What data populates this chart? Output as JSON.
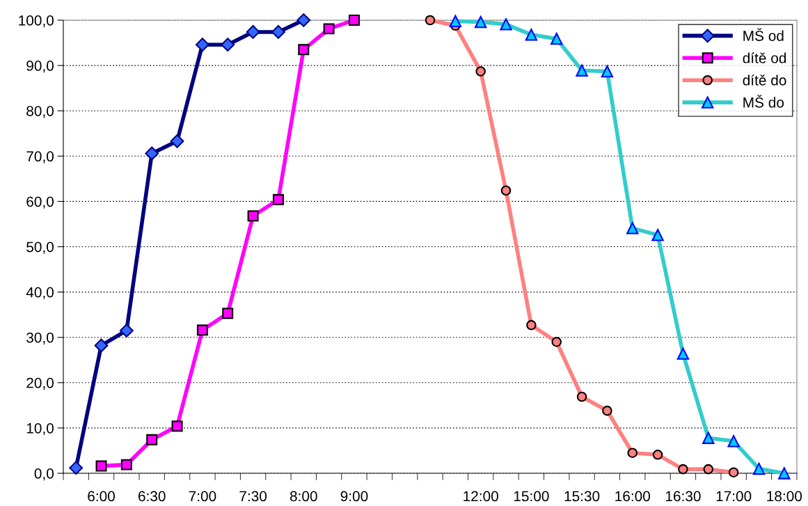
{
  "chart_data": {
    "type": "line",
    "categories": [
      null,
      "6:00",
      null,
      "6:30",
      null,
      "7:00",
      null,
      "7:30",
      null,
      "8:00",
      null,
      "9:00",
      null,
      null,
      null,
      null,
      "12:00",
      null,
      "15:00",
      null,
      "15:30",
      null,
      "16:00",
      null,
      "16:30",
      null,
      "17:00",
      null,
      "18:00"
    ],
    "series": [
      {
        "name": "MŠ od",
        "color": "#000080",
        "marker": "diamond",
        "values": [
          1.2,
          28.2,
          31.5,
          70.6,
          73.3,
          94.6,
          94.6,
          97.4,
          97.4,
          100,
          null,
          null,
          null,
          null,
          null,
          null,
          null,
          null,
          null,
          null,
          null,
          null,
          null,
          null,
          null,
          null,
          null,
          null,
          null
        ]
      },
      {
        "name": "dítě od",
        "color": "#ff00ff",
        "marker": "square",
        "values": [
          null,
          1.6,
          1.9,
          7.4,
          10.4,
          31.6,
          35.3,
          56.8,
          60.4,
          93.5,
          98.1,
          100,
          null,
          null,
          null,
          null,
          null,
          null,
          null,
          null,
          null,
          null,
          null,
          null,
          null,
          null,
          null,
          null,
          null
        ]
      },
      {
        "name": "dítě do",
        "color": "#ff8080",
        "marker": "circle",
        "values": [
          null,
          null,
          null,
          null,
          null,
          null,
          null,
          null,
          null,
          null,
          null,
          null,
          null,
          null,
          100,
          98.8,
          88.7,
          62.4,
          32.7,
          29.0,
          16.9,
          13.8,
          4.5,
          4.1,
          0.9,
          0.9,
          0.2,
          null,
          null
        ]
      },
      {
        "name": "MŠ do",
        "color": "#33cccc",
        "marker": "triangle",
        "values": [
          null,
          null,
          null,
          null,
          null,
          null,
          null,
          null,
          null,
          null,
          null,
          null,
          null,
          null,
          null,
          99.8,
          99.6,
          99.1,
          96.8,
          95.9,
          88.9,
          88.7,
          54.1,
          52.6,
          26.4,
          7.8,
          7.1,
          1.0,
          0
        ]
      }
    ],
    "ylim": [
      0,
      100
    ],
    "yticks": [
      {
        "value": 0,
        "label": "0,0"
      },
      {
        "value": 10,
        "label": "10,0"
      },
      {
        "value": 20,
        "label": "20,0"
      },
      {
        "value": 30,
        "label": "30,0"
      },
      {
        "value": 40,
        "label": "40,0"
      },
      {
        "value": 50,
        "label": "50,0"
      },
      {
        "value": 60,
        "label": "60,0"
      },
      {
        "value": 70,
        "label": "70,0"
      },
      {
        "value": 80,
        "label": "80,0"
      },
      {
        "value": 90,
        "label": "90,0"
      },
      {
        "value": 100,
        "label": "100,0"
      }
    ],
    "grid": "y",
    "legend": "top right",
    "line_style": "solid"
  }
}
